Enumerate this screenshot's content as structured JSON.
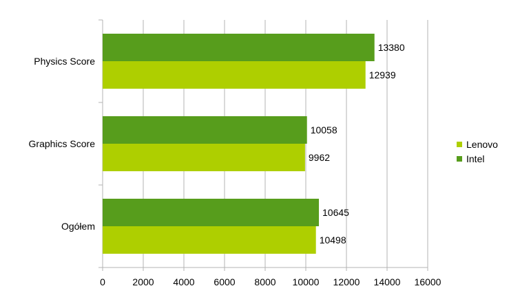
{
  "chart_data": {
    "type": "bar",
    "orientation": "horizontal",
    "title": "",
    "xlabel": "",
    "ylabel": "",
    "categories": [
      "Physics Score",
      "Graphics Score",
      "Ogółem"
    ],
    "series": [
      {
        "name": "Intel",
        "color": "#579d1c",
        "values": [
          13380,
          10058,
          10645
        ]
      },
      {
        "name": "Lenovo",
        "color": "#aecf00",
        "values": [
          12939,
          9962,
          10498
        ]
      }
    ],
    "xlim": [
      0,
      16000
    ],
    "xticks": [
      0,
      2000,
      4000,
      6000,
      8000,
      10000,
      12000,
      14000,
      16000
    ],
    "grid": "vertical",
    "legend": {
      "placement": "right",
      "entries": [
        {
          "name": "Lenovo",
          "color": "#aecf00"
        },
        {
          "name": "Intel",
          "color": "#579d1c"
        }
      ]
    },
    "data_labels": true
  }
}
